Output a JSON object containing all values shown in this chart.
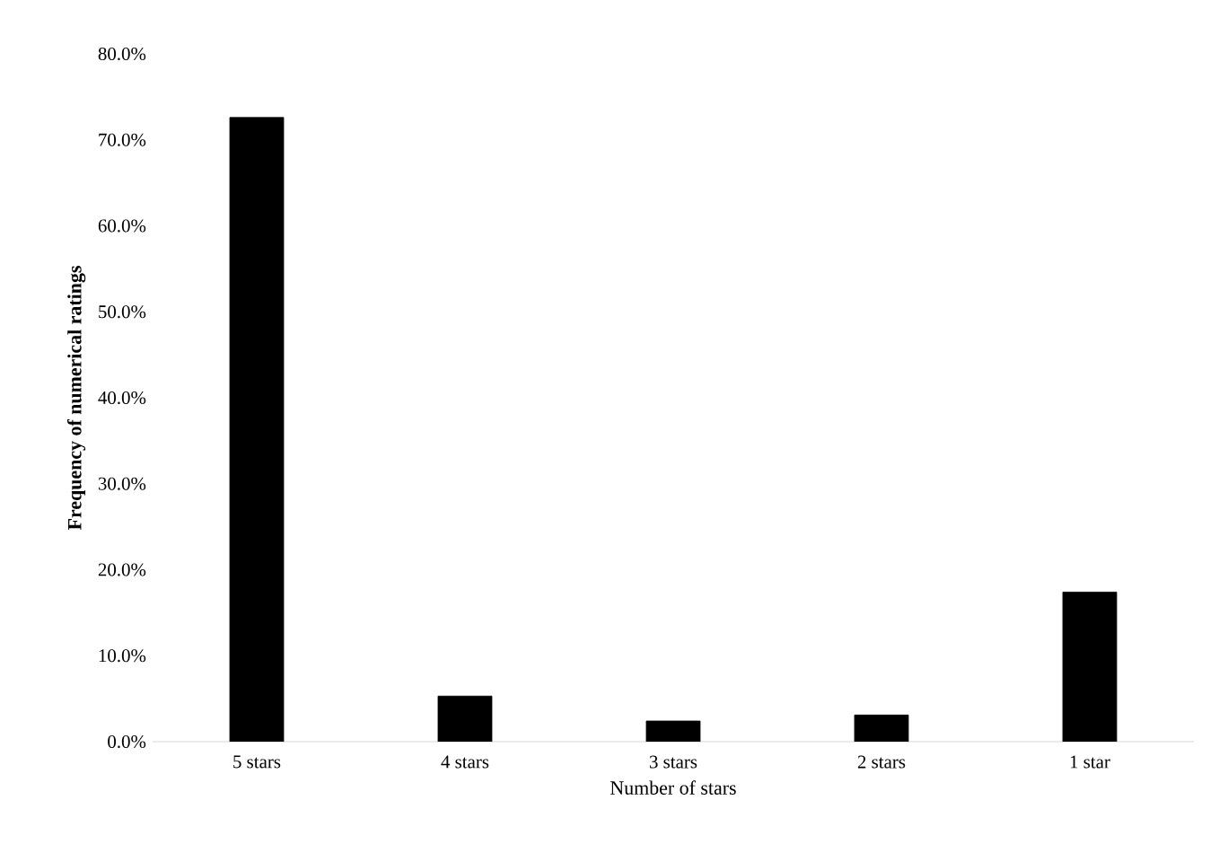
{
  "chart_data": {
    "type": "bar",
    "xlabel": "Number of stars",
    "ylabel": "Frequency of numerical ratings",
    "categories": [
      "5 stars",
      "4 stars",
      "3 stars",
      "2 stars",
      "1 star"
    ],
    "values": [
      72.6,
      5.3,
      2.4,
      3.1,
      17.4
    ],
    "color": "#000000",
    "ylim": [
      0,
      80
    ],
    "yticks": [
      {
        "value": 0,
        "label": "0.0%"
      },
      {
        "value": 10,
        "label": "10.0%"
      },
      {
        "value": 20,
        "label": "20.0%"
      },
      {
        "value": 30,
        "label": "30.0%"
      },
      {
        "value": 40,
        "label": "40.0%"
      },
      {
        "value": 50,
        "label": "50.0%"
      },
      {
        "value": 60,
        "label": "60.0%"
      },
      {
        "value": 70,
        "label": "70.0%"
      },
      {
        "value": 80,
        "label": "80.0%"
      }
    ]
  }
}
